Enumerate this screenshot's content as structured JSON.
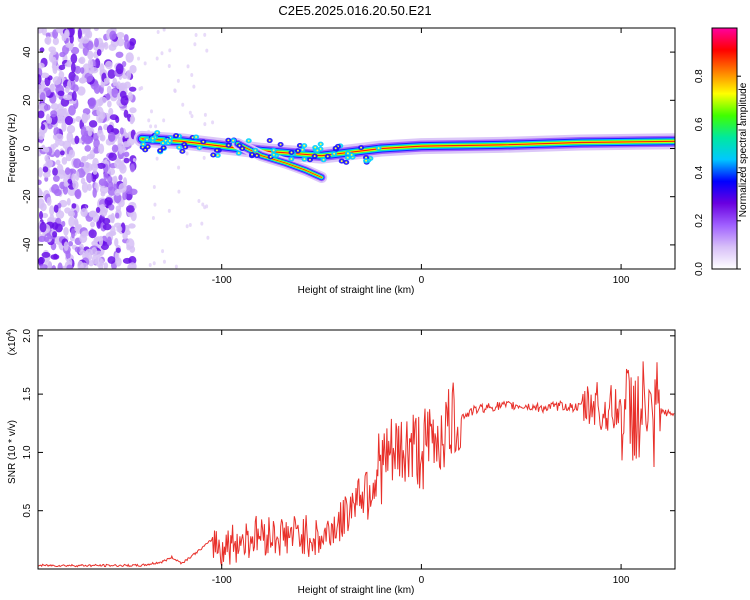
{
  "title": "C2E5.2025.016.20.50.E21",
  "chart_data": [
    {
      "type": "heatmap",
      "xlabel": "Height of straight line (km)",
      "ylabel": "Frequency (Hz)",
      "xlim": [
        -192,
        127
      ],
      "ylim": [
        -50,
        50
      ],
      "xticks": [
        -100,
        0,
        100
      ],
      "yticks": [
        -40,
        -20,
        0,
        20,
        40
      ],
      "colorbar": {
        "label": "Normalized spectral amplitude",
        "range": [
          0,
          1
        ],
        "ticks": [
          "0.0",
          "0.2",
          "0.4",
          "0.6",
          "0.8"
        ],
        "colors": [
          "#ffffff",
          "#d8c0f8",
          "#a060ff",
          "#6a00e0",
          "#0000ff",
          "#00c8ff",
          "#00e8a0",
          "#40ff00",
          "#ffff00",
          "#ff8000",
          "#ff0000",
          "#ff00a0"
        ]
      },
      "noise_region_end_km": -144,
      "main_ridge": [
        {
          "x": -140,
          "y": 4
        },
        {
          "x": -120,
          "y": 3
        },
        {
          "x": -100,
          "y": 1
        },
        {
          "x": -80,
          "y": -1
        },
        {
          "x": -65,
          "y": -2
        },
        {
          "x": -50,
          "y": -3
        },
        {
          "x": -40,
          "y": -2
        },
        {
          "x": -20,
          "y": 0
        },
        {
          "x": 0,
          "y": 1
        },
        {
          "x": 40,
          "y": 1.5
        },
        {
          "x": 80,
          "y": 2.5
        },
        {
          "x": 127,
          "y": 3
        }
      ],
      "branch_ridge": [
        {
          "x": -92,
          "y": 2
        },
        {
          "x": -80,
          "y": -3
        },
        {
          "x": -68,
          "y": -6
        },
        {
          "x": -58,
          "y": -9
        },
        {
          "x": -50,
          "y": -12
        }
      ]
    },
    {
      "type": "line",
      "xlabel": "Height of straight line (km)",
      "ylabel": "SNR (10 * v/v)",
      "y_multiplier": "(x10",
      "y_multiplier_exp": "4",
      "y_multiplier_close": ")",
      "xlim": [
        -192,
        127
      ],
      "ylim": [
        0,
        2.05
      ],
      "xticks": [
        -100,
        0,
        100
      ],
      "yticks": [
        "0.5",
        "1.0",
        "1.5",
        "2.0"
      ],
      "color": "#e8302a",
      "x": [
        -192,
        -180,
        -160,
        -140,
        -130,
        -125,
        -120,
        -112,
        -105,
        -100,
        -90,
        -80,
        -70,
        -60,
        -50,
        -45,
        -40,
        -35,
        -30,
        -25,
        -20,
        -15,
        -10,
        -5,
        0,
        5,
        10,
        15,
        20,
        25,
        30,
        40,
        50,
        60,
        70,
        80,
        85,
        88,
        90,
        92,
        95,
        100,
        105,
        108,
        110,
        112,
        114,
        116,
        118,
        120,
        125,
        127
      ],
      "y": [
        0.03,
        0.03,
        0.03,
        0.03,
        0.06,
        0.1,
        0.05,
        0.15,
        0.25,
        0.18,
        0.25,
        0.3,
        0.28,
        0.3,
        0.25,
        0.35,
        0.4,
        0.55,
        0.7,
        0.75,
        0.9,
        0.95,
        1.0,
        1.05,
        1.0,
        1.1,
        1.15,
        1.25,
        1.3,
        1.35,
        1.38,
        1.4,
        1.4,
        1.38,
        1.4,
        1.38,
        1.4,
        1.45,
        1.3,
        1.35,
        1.38,
        1.35,
        1.33,
        1.36,
        1.2,
        1.5,
        1.3,
        1.0,
        1.4,
        1.35,
        1.33,
        1.33
      ]
    }
  ]
}
